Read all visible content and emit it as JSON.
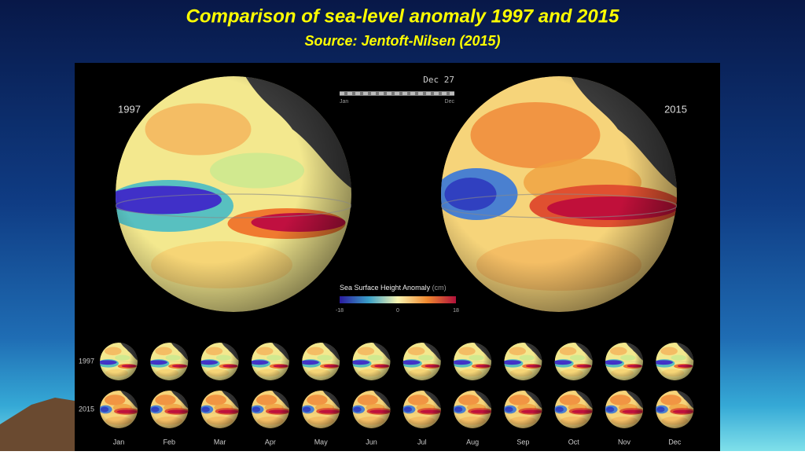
{
  "header": {
    "title": "Comparison of sea-level anomaly 1997 and 2015",
    "subtitle": "Source: Jentoft-Nilsen (2015)"
  },
  "main": {
    "left_label": "1997",
    "right_label": "2015"
  },
  "timeline": {
    "current": "Dec 27",
    "start": "Jan",
    "end": "Dec"
  },
  "colorbar": {
    "title": "Sea Surface Height Anomaly",
    "unit": "(cm)",
    "ticks": [
      -18,
      0,
      18
    ]
  },
  "small_multiples": {
    "row_labels": [
      "1997",
      "2015"
    ],
    "months": [
      "Jan",
      "Feb",
      "Mar",
      "Apr",
      "May",
      "Jun",
      "Jul",
      "Aug",
      "Sep",
      "Oct",
      "Nov",
      "Dec"
    ]
  }
}
